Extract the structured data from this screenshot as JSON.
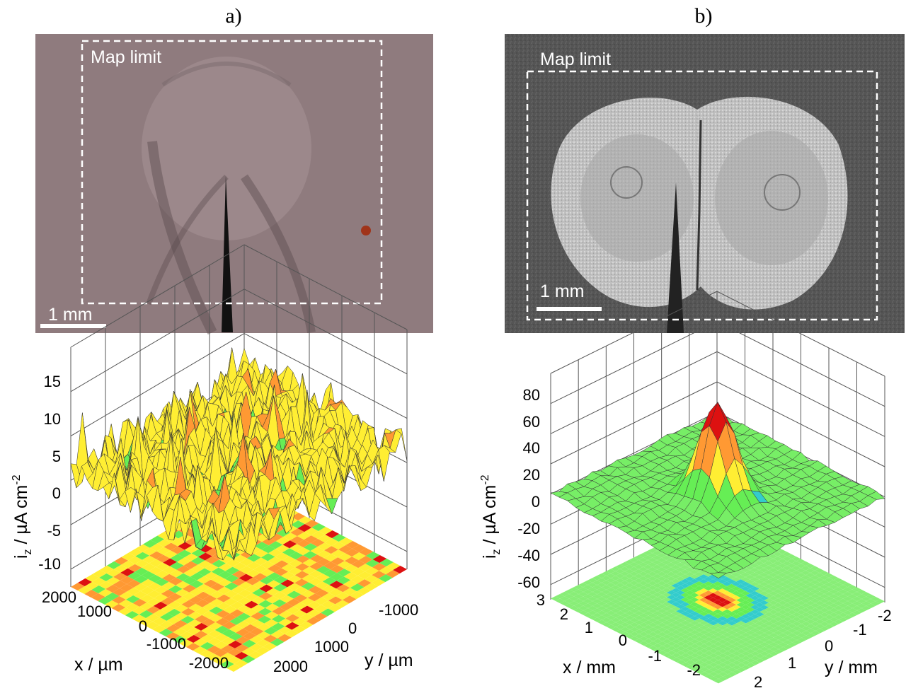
{
  "panels": [
    {
      "id": "a",
      "label": "a)",
      "photo": {
        "map_limit": "Map limit",
        "scale": "1 mm"
      },
      "chart_data": {
        "type": "surface3d",
        "title": "",
        "xlabel": "x / µm",
        "ylabel": "y / µm",
        "zlabel": "i",
        "zlabel_sub": "z",
        "zlabel_unit": " / µA cm",
        "zlabel_sup": "-2",
        "x_ticks": [
          "2000",
          "1000",
          "0",
          "-1000",
          "-2000"
        ],
        "y_ticks": [
          "-1000",
          "0",
          "1000",
          "2000"
        ],
        "z_ticks": [
          "15",
          "10",
          "5",
          "0",
          "-5",
          "-10"
        ],
        "x_range": [
          -2000,
          2000
        ],
        "y_range": [
          -2000,
          2000
        ],
        "zlim": [
          -10,
          15
        ],
        "surface_mean": 1.5,
        "surface_noise": 3,
        "peak_max": 5,
        "contour_plane_z": -12
      }
    },
    {
      "id": "b",
      "label": "b)",
      "photo": {
        "map_limit": "Map limit",
        "scale": "1 mm"
      },
      "chart_data": {
        "type": "surface3d",
        "title": "",
        "xlabel": "x / mm",
        "ylabel": "y / mm",
        "zlabel": "i",
        "zlabel_sub": "z",
        "zlabel_unit": " / µA cm",
        "zlabel_sup": "-2",
        "x_ticks": [
          "3",
          "2",
          "1",
          "0",
          "-1",
          "-2"
        ],
        "y_ticks": [
          "-2",
          "-1",
          "0",
          "1",
          "2"
        ],
        "z_ticks": [
          "80",
          "60",
          "40",
          "20",
          "0",
          "-20",
          "-40",
          "-60"
        ],
        "x_range": [
          -3,
          3
        ],
        "y_range": [
          -2,
          2
        ],
        "zlim": [
          -70,
          80
        ],
        "surface_mean": 0,
        "peak_max": 62,
        "peak_center": [
          0,
          0
        ],
        "contour_plane_z": -70
      }
    }
  ],
  "colors": {
    "contour_low": "#33cccc",
    "contour_mid": "#66ee55",
    "contour_high1": "#ffee33",
    "contour_high2": "#ff9933",
    "contour_max": "#dd1111"
  }
}
